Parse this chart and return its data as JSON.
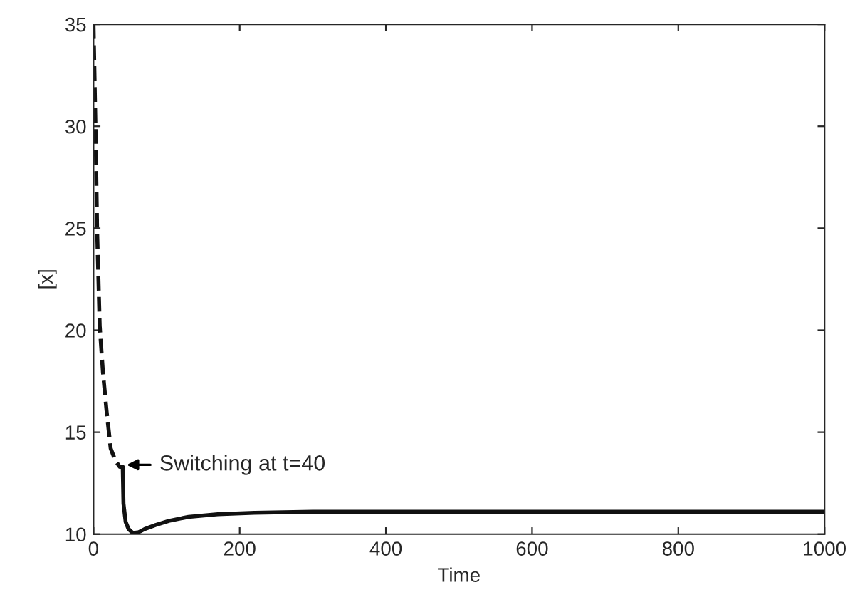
{
  "chart_data": {
    "type": "line",
    "xlabel": "Time",
    "ylabel": "[x]",
    "xlim": [
      0,
      1000
    ],
    "ylim": [
      10,
      35
    ],
    "xticks": [
      0,
      200,
      400,
      600,
      800,
      1000
    ],
    "yticks": [
      10,
      15,
      20,
      25,
      30,
      35
    ],
    "series": [
      {
        "color": "#111111",
        "line_style": "dashed",
        "x": [
          0,
          3,
          5,
          8.5,
          13,
          18,
          23.5,
          30,
          36,
          40
        ],
        "values": [
          35,
          29.4,
          24.8,
          20.2,
          17.9,
          16,
          14.2,
          13.6,
          13.3,
          13.3
        ]
      },
      {
        "color": "#111111",
        "line_style": "solid",
        "x": [
          40,
          41,
          44,
          48,
          54,
          62,
          70,
          85,
          103,
          130,
          170,
          220,
          300,
          400,
          600,
          800,
          1000
        ],
        "values": [
          13.3,
          11.5,
          10.6,
          10.25,
          10.05,
          10.1,
          10.25,
          10.45,
          10.65,
          10.85,
          10.98,
          11.05,
          11.1,
          11.1,
          11.1,
          11.1,
          11.1
        ]
      }
    ],
    "annotations": [
      {
        "text": "Switching at t=40",
        "x": 40,
        "y": 13.4
      }
    ],
    "grid": false,
    "legend": false
  }
}
